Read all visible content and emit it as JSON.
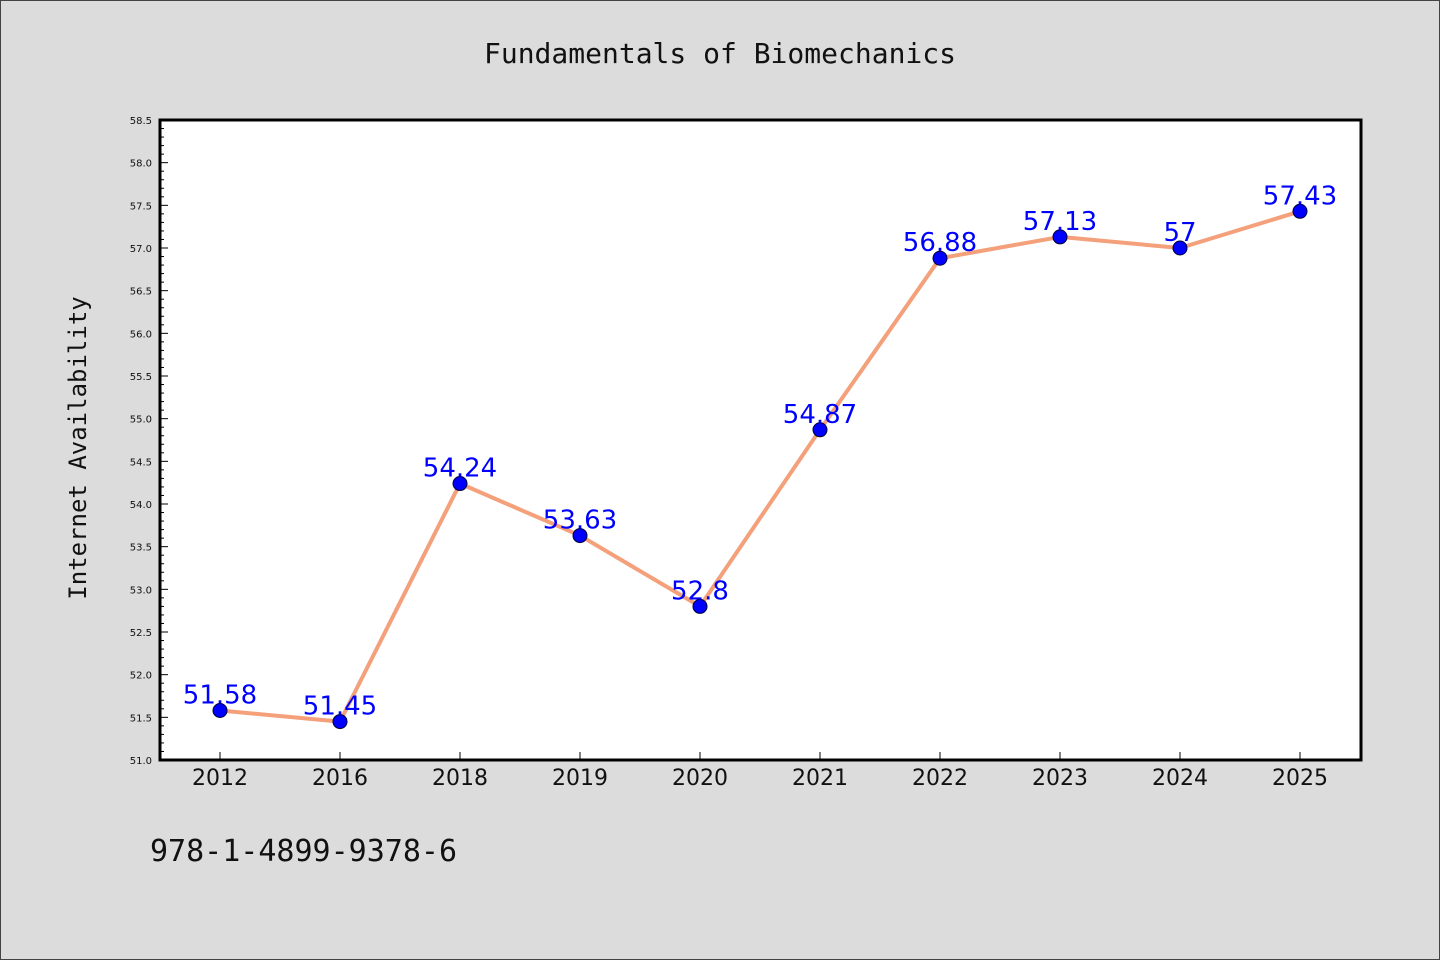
{
  "chart_data": {
    "type": "line",
    "title": "Fundamentals of Biomechanics",
    "xlabel": "",
    "ylabel": "Internet Availability",
    "categories": [
      "2012",
      "2016",
      "2018",
      "2019",
      "2020",
      "2021",
      "2022",
      "2023",
      "2024",
      "2025"
    ],
    "series": [
      {
        "values": [
          51.58,
          51.45,
          54.24,
          53.63,
          52.8,
          54.87,
          56.88,
          57.13,
          57.0,
          57.43
        ],
        "labels": [
          "51.58",
          "51.45",
          "54.24",
          "53.63",
          "52.8",
          "54.87",
          "56.88",
          "57.13",
          "57",
          "57.43"
        ]
      }
    ],
    "ylim": [
      51.0,
      58.5
    ],
    "yticks": [
      "51.0",
      "51.5",
      "52.0",
      "52.5",
      "53.0",
      "53.5",
      "54.0",
      "54.5",
      "55.0",
      "55.5",
      "56.0",
      "56.5",
      "57.0",
      "57.5",
      "58.0",
      "58.5"
    ],
    "grid": false,
    "colors": {
      "line": "#f4a07a",
      "marker": "#0000ff",
      "marker_edge": "#000033",
      "label": "#0000ff"
    }
  },
  "footer": {
    "identifier": "978-1-4899-9378-6"
  }
}
